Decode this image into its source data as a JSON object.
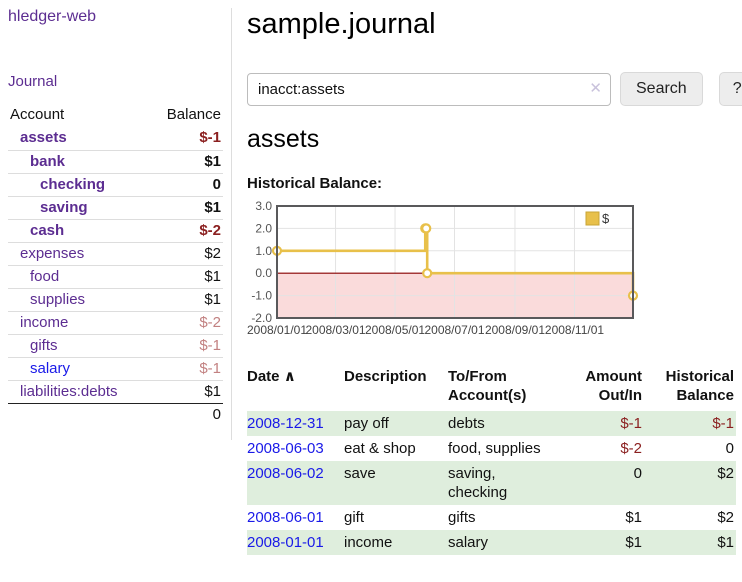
{
  "app": {
    "title": "hledger-web",
    "nav_journal": "Journal"
  },
  "sidebar": {
    "columns": {
      "account": "Account",
      "balance": "Balance"
    },
    "accounts": [
      {
        "name": "assets",
        "balance": "$-1"
      },
      {
        "name": "bank",
        "balance": "$1"
      },
      {
        "name": "checking",
        "balance": "0"
      },
      {
        "name": "saving",
        "balance": "$1"
      },
      {
        "name": "cash",
        "balance": "$-2"
      },
      {
        "name": "expenses",
        "balance": "$2"
      },
      {
        "name": "food",
        "balance": "$1"
      },
      {
        "name": "supplies",
        "balance": "$1"
      },
      {
        "name": "income",
        "balance": "$-2"
      },
      {
        "name": "gifts",
        "balance": "$-1"
      },
      {
        "name": "salary",
        "balance": "$-1"
      },
      {
        "name": "liabilities:debts",
        "balance": "$1"
      }
    ],
    "total": "0"
  },
  "header": {
    "title": "sample.journal"
  },
  "search": {
    "value": "inacct:assets",
    "clear_icon": "✕",
    "button_label": "Search",
    "help_label": "?"
  },
  "account_page": {
    "title": "assets",
    "chart_label": "Historical Balance:"
  },
  "chart_data": {
    "type": "line",
    "step": true,
    "title": "Historical Balance:",
    "series": [
      {
        "name": "$",
        "color": "#e8c04a",
        "points": [
          [
            "2008-01-01",
            1
          ],
          [
            "2008-06-01",
            2
          ],
          [
            "2008-06-02",
            2
          ],
          [
            "2008-06-03",
            0
          ],
          [
            "2008-12-31",
            -1
          ]
        ]
      }
    ],
    "xrange": [
      "2008-01-01",
      "2008-12-31"
    ],
    "ylim": [
      -2,
      3
    ],
    "yticks": [
      "3.0",
      "2.0",
      "1.0",
      "0.0",
      "-1.0",
      "-2.0"
    ],
    "xticks": [
      "2008/01/01",
      "2008/03/01",
      "2008/05/01",
      "2008/07/01",
      "2008/09/01",
      "2008/11/01"
    ],
    "grid": true,
    "legend_position": "top-right",
    "legend_label": "$",
    "negative_region_color": "#fadbdb",
    "zero_line_color": "#8b0000",
    "border_color": "#59595b",
    "grid_color": "#e3e3e3"
  },
  "register": {
    "columns": [
      "Date",
      "Description",
      "To/From Account(s)",
      "Amount Out/In",
      "Historical Balance"
    ],
    "sort_icon": "∧",
    "rows": [
      {
        "date": "2008-12-31",
        "description": "pay off",
        "accounts": "debts",
        "amount": "$-1",
        "balance": "$-1"
      },
      {
        "date": "2008-06-03",
        "description": "eat & shop",
        "accounts": "food, supplies",
        "amount": "$-2",
        "balance": "0"
      },
      {
        "date": "2008-06-02",
        "description": "save",
        "accounts": "saving, checking",
        "amount": "0",
        "balance": "$2"
      },
      {
        "date": "2008-06-01",
        "description": "gift",
        "accounts": "gifts",
        "amount": "$1",
        "balance": "$2"
      },
      {
        "date": "2008-01-01",
        "description": "income",
        "accounts": "salary",
        "amount": "$1",
        "balance": "$1"
      }
    ]
  }
}
